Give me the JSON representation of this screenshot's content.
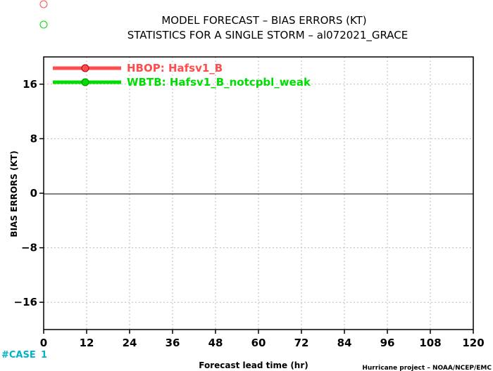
{
  "chart_data": {
    "type": "line",
    "title": "MODEL FORECAST – BIAS ERRORS (KT)",
    "subtitle": "STATISTICS FOR A SINGLE STORM – al072021_GRACE",
    "xlabel": "Forecast lead time (hr)",
    "ylabel": "BIAS ERRORS (KT)",
    "xlim": [
      0,
      120
    ],
    "ylim": [
      -20,
      20
    ],
    "x_ticks": [
      0,
      12,
      24,
      36,
      48,
      60,
      72,
      84,
      96,
      108,
      120
    ],
    "y_ticks": [
      -16,
      -8,
      0,
      8,
      16
    ],
    "grid": true,
    "legend_position": "top-left",
    "series": [
      {
        "name": "HBOP: Hafsv1_B",
        "color": "#ff4d4d",
        "x": [],
        "y": []
      },
      {
        "name": "WBTB: Hafsv1_B_notcpbl_weak",
        "color": "#00dd00",
        "x": [],
        "y": []
      }
    ],
    "cases_label": "#CASE",
    "cases": [
      1
    ],
    "footer": "Hurricane project – NOAA/NCEP/EMC"
  }
}
